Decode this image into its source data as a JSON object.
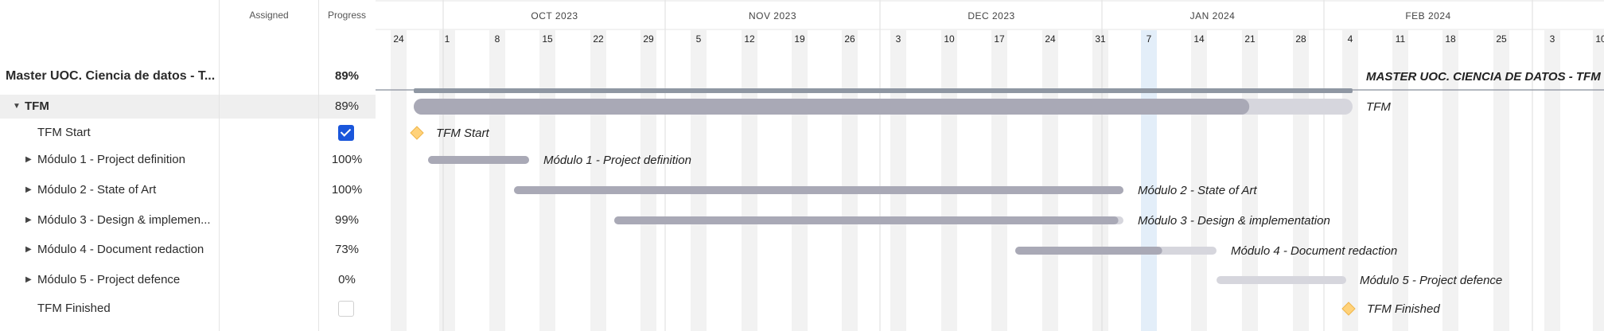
{
  "columns": {
    "assigned": "Assigned",
    "progress": "Progress"
  },
  "months": [
    {
      "label": "OCT 2023"
    },
    {
      "label": "NOV 2023"
    },
    {
      "label": "DEC 2023"
    },
    {
      "label": "JAN 2024"
    },
    {
      "label": "FEB 2024"
    }
  ],
  "weeks": [
    "24",
    "1",
    "8",
    "15",
    "22",
    "29",
    "5",
    "12",
    "19",
    "26",
    "3",
    "10",
    "17",
    "24",
    "31",
    "7",
    "14",
    "21",
    "28",
    "4",
    "11",
    "18",
    "25",
    "3",
    "10"
  ],
  "tasks": [
    {
      "name": "Master UOC. Ciencia de datos - T...",
      "progress": "89%",
      "bar_label": "MASTER UOC. CIENCIA DE DATOS - TFM"
    },
    {
      "name": "TFM",
      "progress": "89%",
      "bar_label": "TFM",
      "complete": 0.89
    },
    {
      "name": "TFM Start",
      "bar_label": "TFM Start",
      "checked": true
    },
    {
      "name": "Módulo 1 - Project definition",
      "progress": "100%",
      "bar_label": "Módulo 1 - Project definition",
      "complete": 1.0
    },
    {
      "name": "Módulo 2 - State of Art",
      "progress": "100%",
      "bar_label": "Módulo 2 - State of Art",
      "complete": 1.0
    },
    {
      "name": "Módulo 3 - Design & implemen...",
      "progress": "99%",
      "bar_label": "Módulo 3 - Design & implementation",
      "complete": 0.99
    },
    {
      "name": "Módulo 4 - Document redaction",
      "progress": "73%",
      "bar_label": "Módulo 4 - Document redaction",
      "complete": 0.73
    },
    {
      "name": "Módulo 5 - Project defence",
      "progress": "0%",
      "bar_label": "Módulo 5 - Project defence",
      "complete": 0.0
    },
    {
      "name": "TFM Finished",
      "bar_label": "TFM Finished",
      "checked": false
    }
  ],
  "colors": {
    "bar_done": "#a9a9b6",
    "bar_todo": "#d6d6dd",
    "milestone": "#ffd27a",
    "checkbox": "#1a56db",
    "weekend": "#f2f2f2",
    "today": "#e3eef9"
  }
}
